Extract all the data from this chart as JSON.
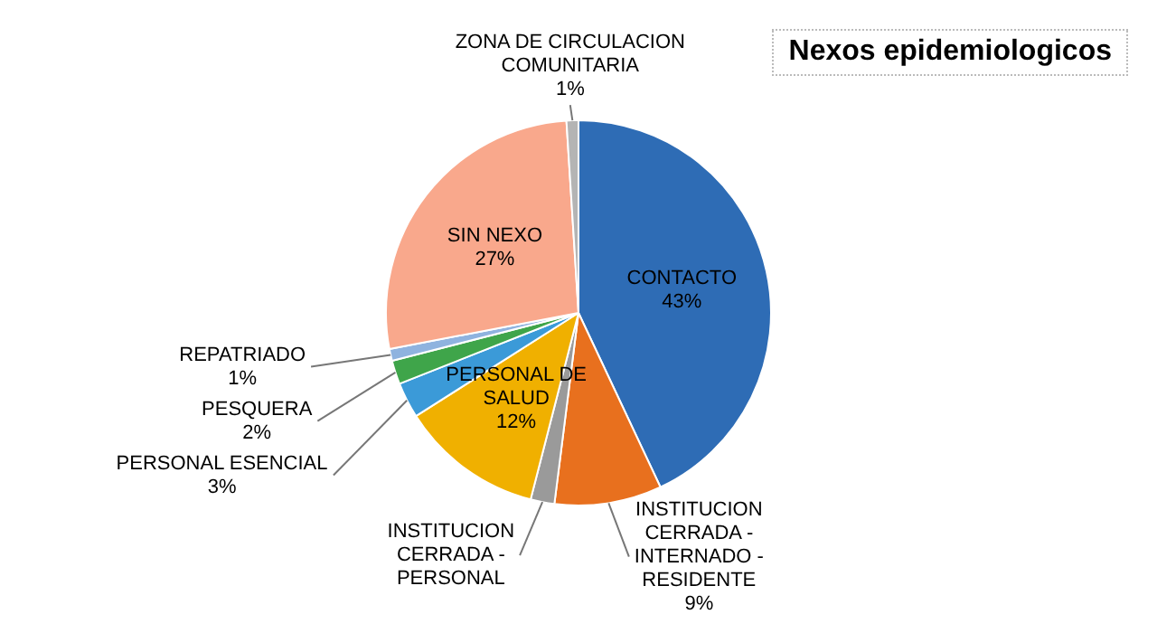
{
  "chart_data": {
    "type": "pie",
    "title": "Nexos epidemiologicos",
    "categories": [
      "CONTACTO",
      "INSTITUCION CERRADA - INTERNADO - RESIDENTE",
      "INSTITUCION CERRADA - PERSONAL",
      "PERSONAL DE SALUD",
      "PERSONAL ESENCIAL",
      "PESQUERA",
      "REPATRIADO",
      "SIN NEXO",
      "ZONA DE CIRCULACION COMUNITARIA"
    ],
    "values": [
      43,
      9,
      2,
      12,
      3,
      2,
      1,
      27,
      1
    ],
    "value_labels": [
      "43%",
      "9%",
      null,
      "12%",
      "3%",
      "2%",
      "1%",
      "27%",
      "1%"
    ],
    "colors": [
      "#2e6cb5",
      "#e8701e",
      "#9a9a9a",
      "#f0b000",
      "#3b9ad8",
      "#3fa54a",
      "#8fb3df",
      "#f9a88c",
      "#b4b4b4"
    ],
    "legend": false
  }
}
